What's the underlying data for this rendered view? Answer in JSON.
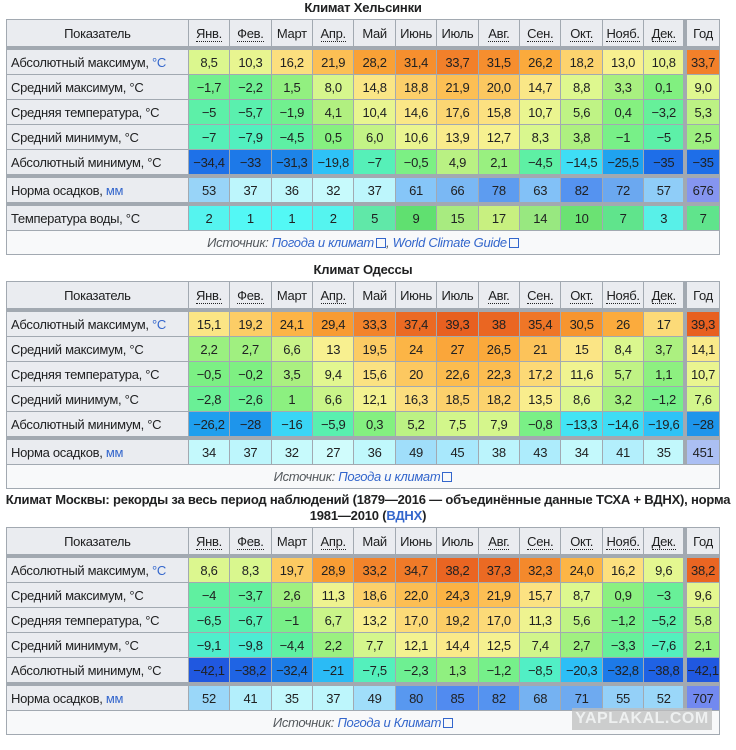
{
  "months_header": {
    "label": "Показатель",
    "months": [
      "Янв.",
      "Фев.",
      "Март",
      "Апр.",
      "Май",
      "Июнь",
      "Июль",
      "Авг.",
      "Сен.",
      "Окт.",
      "Нояб.",
      "Дек."
    ],
    "year": "Год"
  },
  "tables": [
    {
      "title": "Климат Хельсинки",
      "rows": [
        {
          "label": "Абсолютный максимум, ",
          "unit": "°C",
          "kind": "t",
          "values": [
            "8,5",
            "10,3",
            "16,2",
            "21,9",
            "28,2",
            "31,4",
            "33,7",
            "31,5",
            "26,2",
            "18,2",
            "13,0",
            "10,8"
          ],
          "year": "33,7"
        },
        {
          "label": "Средний максимум, °C",
          "kind": "t",
          "values": [
            "−1,7",
            "−2,2",
            "1,5",
            "8,0",
            "14,8",
            "18,8",
            "21,9",
            "20,0",
            "14,7",
            "8,8",
            "3,3",
            "0,1"
          ],
          "year": "9,0"
        },
        {
          "label": "Средняя температура, °C",
          "kind": "t",
          "values": [
            "−5",
            "−5,7",
            "−1,9",
            "4,1",
            "10,4",
            "14,6",
            "17,6",
            "15,8",
            "10,7",
            "5,6",
            "0,4",
            "−3,2"
          ],
          "year": "5,3"
        },
        {
          "label": "Средний минимум, °C",
          "kind": "t",
          "values": [
            "−7",
            "−7,9",
            "−4,5",
            "0,5",
            "6,0",
            "10,6",
            "13,9",
            "12,7",
            "8,3",
            "3,8",
            "−1",
            "−5"
          ],
          "year": "2,5"
        },
        {
          "label": "Абсолютный минимум, °C",
          "kind": "t",
          "values": [
            "−34,4",
            "−33",
            "−31,3",
            "−19,8",
            "−7",
            "−0,5",
            "4,9",
            "2,1",
            "−4,5",
            "−14,5",
            "−25,5",
            "−35"
          ],
          "year": "−35"
        },
        {
          "label": "Норма осадков, ",
          "unit": "мм",
          "kind": "p",
          "sep": true,
          "values": [
            "53",
            "37",
            "36",
            "32",
            "37",
            "61",
            "66",
            "78",
            "63",
            "82",
            "72",
            "57"
          ],
          "year": "676"
        },
        {
          "label": "Температура воды, °C",
          "kind": "w",
          "sep": true,
          "values": [
            "2",
            "1",
            "1",
            "2",
            "5",
            "9",
            "15",
            "17",
            "14",
            "10",
            "7",
            "3"
          ],
          "year": "7"
        }
      ],
      "source": {
        "prefix": "Источник: ",
        "links": [
          "Погода и климат",
          "World Climate Guide"
        ],
        "separator": ", "
      }
    },
    {
      "title": "Климат Одессы",
      "rows": [
        {
          "label": "Абсолютный максимум, ",
          "unit": "°C",
          "kind": "t",
          "values": [
            "15,1",
            "19,2",
            "24,1",
            "29,4",
            "33,3",
            "37,4",
            "39,3",
            "38",
            "35,4",
            "30,5",
            "26",
            "17"
          ],
          "year": "39,3"
        },
        {
          "label": "Средний максимум, °C",
          "kind": "t",
          "values": [
            "2,2",
            "2,7",
            "6,6",
            "13",
            "19,5",
            "24",
            "27",
            "26,5",
            "21",
            "15",
            "8,4",
            "3,7"
          ],
          "year": "14,1"
        },
        {
          "label": "Средняя температура, °C",
          "kind": "t",
          "values": [
            "−0,5",
            "−0,2",
            "3,5",
            "9,4",
            "15,6",
            "20",
            "22,6",
            "22,3",
            "17,2",
            "11,6",
            "5,7",
            "1,1"
          ],
          "year": "10,7"
        },
        {
          "label": "Средний минимум, °C",
          "kind": "t",
          "values": [
            "−2,8",
            "−2,6",
            "1",
            "6,6",
            "12,1",
            "16,3",
            "18,5",
            "18,2",
            "13,5",
            "8,6",
            "3,2",
            "−1,2"
          ],
          "year": "7,6"
        },
        {
          "label": "Абсолютный минимум, °C",
          "kind": "t",
          "values": [
            "−26,2",
            "−28",
            "−16",
            "−5,9",
            "0,3",
            "5,2",
            "7,5",
            "7,9",
            "−0,8",
            "−13,3",
            "−14,6",
            "−19,6"
          ],
          "year": "−28"
        },
        {
          "label": "Норма осадков, ",
          "unit": "мм",
          "kind": "p",
          "sep": true,
          "values": [
            "34",
            "37",
            "32",
            "27",
            "36",
            "49",
            "45",
            "38",
            "43",
            "34",
            "41",
            "35"
          ],
          "year": "451"
        }
      ],
      "source": {
        "prefix": "Источник: ",
        "links": [
          "Погода и климат"
        ],
        "separator": ""
      }
    },
    {
      "title": "Климат Москвы: рекорды за весь период наблюдений (1879—2016 — объединённые данные ТСХА + ВДНХ), норма 1981—2010 (",
      "title_link": "ВДНХ",
      "title_suffix": ")",
      "rows": [
        {
          "label": "Абсолютный максимум, ",
          "unit": "°C",
          "kind": "t",
          "values": [
            "8,6",
            "8,3",
            "19,7",
            "28,9",
            "33,2",
            "34,7",
            "38,2",
            "37,3",
            "32,3",
            "24,0",
            "16,2",
            "9,6"
          ],
          "year": "38,2"
        },
        {
          "label": "Средний максимум, °C",
          "kind": "t",
          "values": [
            "−4",
            "−3,7",
            "2,6",
            "11,3",
            "18,6",
            "22,0",
            "24,3",
            "21,9",
            "15,7",
            "8,7",
            "0,9",
            "−3"
          ],
          "year": "9,6"
        },
        {
          "label": "Средняя температура, °C",
          "kind": "t",
          "values": [
            "−6,5",
            "−6,7",
            "−1",
            "6,7",
            "13,2",
            "17,0",
            "19,2",
            "17,0",
            "11,3",
            "5,6",
            "−1,2",
            "−5,2"
          ],
          "year": "5,8"
        },
        {
          "label": "Средний минимум, °C",
          "kind": "t",
          "values": [
            "−9,1",
            "−9,8",
            "−4,4",
            "2,2",
            "7,7",
            "12,1",
            "14,4",
            "12,5",
            "7,4",
            "2,7",
            "−3,3",
            "−7,6"
          ],
          "year": "2,1"
        },
        {
          "label": "Абсолютный минимум, °C",
          "kind": "t",
          "values": [
            "−42,1",
            "−38,2",
            "−32,4",
            "−21",
            "−7,5",
            "−2,3",
            "1,3",
            "−1,2",
            "−8,5",
            "−20,3",
            "−32,8",
            "−38,8"
          ],
          "year": "−42,1"
        },
        {
          "label": "Норма осадков, ",
          "unit": "мм",
          "kind": "p",
          "sep": true,
          "values": [
            "52",
            "41",
            "35",
            "37",
            "49",
            "80",
            "85",
            "82",
            "68",
            "71",
            "55",
            "52"
          ],
          "year": "707"
        }
      ],
      "source": {
        "prefix": "Источник: ",
        "links": [
          "Погода и Климат"
        ],
        "separator": ""
      }
    }
  ],
  "watermark": "YAPLAKAL.COM"
}
